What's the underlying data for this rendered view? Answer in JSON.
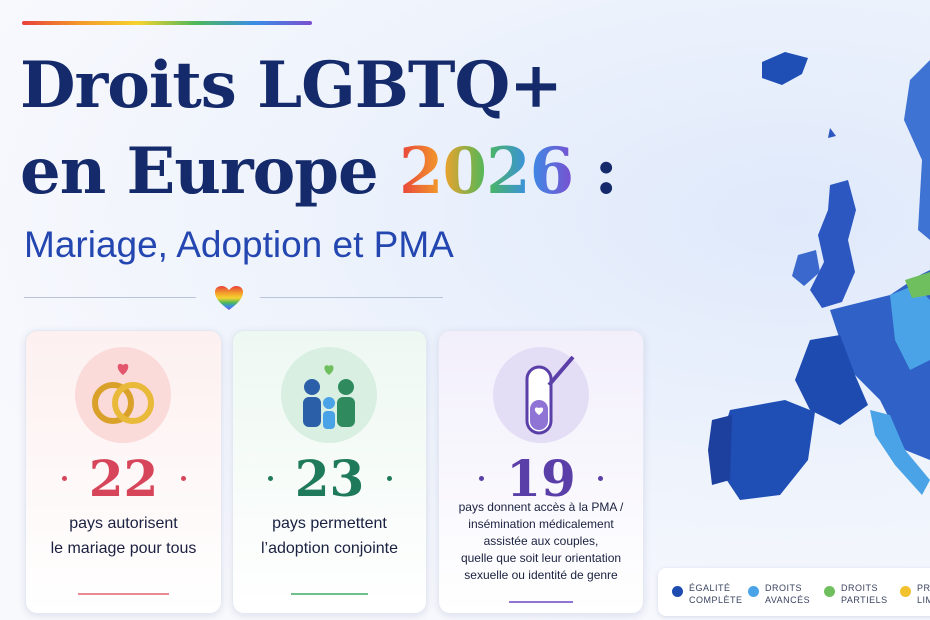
{
  "header": {
    "title_line1": "Droits LGBTQ+",
    "title_line2": "en Europe",
    "title_year": "2026",
    "title_colon": ":",
    "subtitle": "Mariage, Adoption et PMA"
  },
  "cards": [
    {
      "number": "22",
      "color": "#d6455a",
      "text_lines": [
        "pays autorisent",
        "le mariage pour tous"
      ]
    },
    {
      "number": "23",
      "color": "#1f7a5c",
      "text_lines": [
        "pays permettent",
        "l’adoption conjointe"
      ]
    },
    {
      "number": "19",
      "color": "#5b3fa8",
      "text_lines": [
        "pays donnent accès à la PMA /",
        "insémination médicalement",
        "assistée aux couples,",
        "quelle que soit leur orientation",
        "sexuelle ou identité de genre"
      ]
    }
  ],
  "legend": [
    {
      "label_lines": [
        "ÉGALITÉ",
        "COMPLÈTE"
      ],
      "color": "#1d4bb0"
    },
    {
      "label_lines": [
        "DROITS",
        "AVANCÉS"
      ],
      "color": "#4aa3e6"
    },
    {
      "label_lines": [
        "DROITS",
        "PARTIELS"
      ],
      "color": "#6fbf5f"
    },
    {
      "label_lines": [
        "PRO",
        "LIM"
      ],
      "color": "#f2c12e"
    }
  ]
}
